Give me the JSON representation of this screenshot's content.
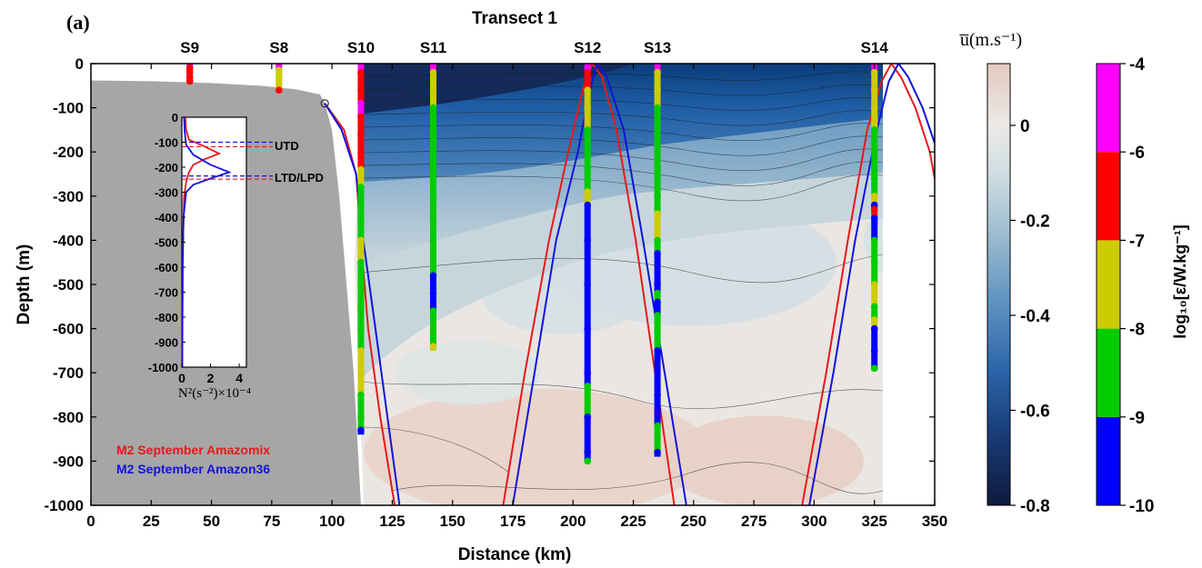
{
  "chart_data": {
    "type": "section-contour",
    "panel_label": "(a)",
    "title": "Transect 1",
    "xlabel": "Distance (km)",
    "ylabel": "Depth (m)",
    "xlim": [
      0,
      350
    ],
    "ylim": [
      -1000,
      0
    ],
    "xticks": [
      "0",
      "25",
      "50",
      "75",
      "100",
      "125",
      "150",
      "175",
      "200",
      "225",
      "250",
      "275",
      "300",
      "325",
      "350"
    ],
    "yticks": [
      "0",
      "-100",
      "-200",
      "-300",
      "-400",
      "-500",
      "-600",
      "-700",
      "-800",
      "-900",
      "-1000"
    ],
    "stations": [
      {
        "name": "S9",
        "x": 41,
        "max_depth": -45,
        "eps": [
          [
            0,
            -4
          ],
          [
            -10,
            -6.5
          ],
          [
            -20,
            -6.5
          ],
          [
            -30,
            -6.5
          ],
          [
            -40,
            -6.5
          ]
        ]
      },
      {
        "name": "S8",
        "x": 78,
        "max_depth": -65,
        "eps": [
          [
            0,
            -4
          ],
          [
            -15,
            -7.5
          ],
          [
            -30,
            -7.5
          ],
          [
            -45,
            -7.5
          ],
          [
            -60,
            -6.5
          ]
        ]
      },
      {
        "name": "S10",
        "x": 112,
        "max_depth": -840,
        "eps": [
          [
            0,
            -4
          ],
          [
            -20,
            -6.5
          ],
          [
            -60,
            -6.5
          ],
          [
            -90,
            -4
          ],
          [
            -120,
            -6.5
          ],
          [
            -160,
            -6.5
          ],
          [
            -200,
            -6.5
          ],
          [
            -240,
            -7.5
          ],
          [
            -280,
            -8.5
          ],
          [
            -320,
            -8.5
          ],
          [
            -360,
            -8.5
          ],
          [
            -400,
            -7.5
          ],
          [
            -450,
            -8.5
          ],
          [
            -500,
            -8.5
          ],
          [
            -550,
            -8.5
          ],
          [
            -600,
            -8.5
          ],
          [
            -650,
            -7.5
          ],
          [
            -700,
            -7.5
          ],
          [
            -750,
            -8.5
          ],
          [
            -800,
            -8.5
          ],
          [
            -830,
            -9.5
          ]
        ]
      },
      {
        "name": "S11",
        "x": 142,
        "max_depth": -650,
        "eps": [
          [
            0,
            -4
          ],
          [
            -20,
            -7.5
          ],
          [
            -60,
            -7.5
          ],
          [
            -100,
            -8.5
          ],
          [
            -150,
            -8.5
          ],
          [
            -200,
            -8.5
          ],
          [
            -250,
            -8.5
          ],
          [
            -300,
            -8.5
          ],
          [
            -350,
            -8.5
          ],
          [
            -400,
            -8.5
          ],
          [
            -450,
            -8.5
          ],
          [
            -480,
            -9.5
          ],
          [
            -520,
            -9.5
          ],
          [
            -560,
            -8.5
          ],
          [
            -600,
            -8.5
          ],
          [
            -640,
            -7.5
          ]
        ]
      },
      {
        "name": "S12",
        "x": 206,
        "max_depth": -900,
        "eps": [
          [
            0,
            -4
          ],
          [
            -20,
            -6.5
          ],
          [
            -60,
            -7.5
          ],
          [
            -100,
            -7.5
          ],
          [
            -150,
            -8.5
          ],
          [
            -200,
            -8.5
          ],
          [
            -250,
            -8.5
          ],
          [
            -290,
            -7.5
          ],
          [
            -320,
            -9.5
          ],
          [
            -400,
            -9.5
          ],
          [
            -500,
            -9.5
          ],
          [
            -600,
            -9.5
          ],
          [
            -700,
            -9.5
          ],
          [
            -730,
            -8.5
          ],
          [
            -800,
            -9.5
          ],
          [
            -880,
            -9.5
          ],
          [
            -900,
            -8.5
          ]
        ]
      },
      {
        "name": "S13",
        "x": 235,
        "max_depth": -890,
        "eps": [
          [
            0,
            -4
          ],
          [
            -20,
            -7.5
          ],
          [
            -60,
            -7.5
          ],
          [
            -100,
            -8.5
          ],
          [
            -200,
            -8.5
          ],
          [
            -300,
            -8.5
          ],
          [
            -340,
            -7.5
          ],
          [
            -400,
            -8.5
          ],
          [
            -430,
            -9.5
          ],
          [
            -500,
            -9.5
          ],
          [
            -520,
            -8.5
          ],
          [
            -540,
            -9.5
          ],
          [
            -570,
            -8.5
          ],
          [
            -650,
            -9.5
          ],
          [
            -750,
            -9.5
          ],
          [
            -820,
            -8.5
          ],
          [
            -880,
            -9.5
          ]
        ]
      },
      {
        "name": "S14",
        "x": 325,
        "max_depth": -695,
        "eps": [
          [
            0,
            -4
          ],
          [
            -20,
            -7.5
          ],
          [
            -60,
            -7.5
          ],
          [
            -100,
            -7.5
          ],
          [
            -150,
            -8.5
          ],
          [
            -200,
            -8.5
          ],
          [
            -260,
            -8.5
          ],
          [
            -300,
            -7.5
          ],
          [
            -320,
            -9.5
          ],
          [
            -330,
            -6.5
          ],
          [
            -350,
            -9.5
          ],
          [
            -400,
            -8.5
          ],
          [
            -450,
            -8.5
          ],
          [
            -500,
            -7.5
          ],
          [
            -550,
            -8.5
          ],
          [
            -580,
            -7.5
          ],
          [
            -600,
            -9.5
          ],
          [
            -650,
            -9.5
          ],
          [
            -690,
            -8.5
          ]
        ]
      }
    ],
    "bathymetry": [
      [
        0,
        -38
      ],
      [
        25,
        -40
      ],
      [
        50,
        -44
      ],
      [
        70,
        -50
      ],
      [
        85,
        -58
      ],
      [
        95,
        -70
      ],
      [
        97,
        -90
      ],
      [
        100,
        -150
      ],
      [
        103,
        -300
      ],
      [
        106,
        -500
      ],
      [
        109,
        -700
      ],
      [
        112,
        -1000
      ]
    ],
    "marker": {
      "x": 97,
      "y": -90
    },
    "rays": [
      {
        "name": "M2 September Amazomix",
        "color": "#e6191b",
        "segments": [
          [
            [
              97,
              -90
            ],
            [
              105,
              -150
            ],
            [
              110,
              -250
            ],
            [
              112,
              -400
            ],
            [
              115,
              -600
            ],
            [
              120,
              -800
            ],
            [
              126,
              -1000
            ]
          ],
          [
            [
              171,
              -1000
            ],
            [
              180,
              -700
            ],
            [
              190,
              -400
            ],
            [
              198,
              -200
            ],
            [
              204,
              -60
            ],
            [
              208,
              0
            ],
            [
              212,
              -30
            ],
            [
              218,
              -150
            ],
            [
              226,
              -400
            ],
            [
              234,
              -700
            ],
            [
              242,
              -1000
            ]
          ],
          [
            [
              295,
              -1000
            ],
            [
              305,
              -700
            ],
            [
              314,
              -400
            ],
            [
              322,
              -150
            ],
            [
              328,
              -40
            ],
            [
              332,
              0
            ],
            [
              336,
              -30
            ],
            [
              342,
              -100
            ],
            [
              348,
              -200
            ],
            [
              350,
              -260
            ]
          ]
        ]
      },
      {
        "name": "M2 September Amazon36",
        "color": "#1212d9",
        "segments": [
          [
            [
              97,
              -90
            ],
            [
              104,
              -150
            ],
            [
              110,
              -250
            ],
            [
              113,
              -400
            ],
            [
              118,
              -600
            ],
            [
              123,
              -800
            ],
            [
              128,
              -1000
            ]
          ],
          [
            [
              175,
              -1000
            ],
            [
              184,
              -700
            ],
            [
              193,
              -400
            ],
            [
              202,
              -200
            ],
            [
              207,
              -60
            ],
            [
              210,
              0
            ],
            [
              214,
              -30
            ],
            [
              221,
              -150
            ],
            [
              229,
              -400
            ],
            [
              238,
              -700
            ],
            [
              247,
              -1000
            ]
          ],
          [
            [
              298,
              -1000
            ],
            [
              308,
              -700
            ],
            [
              317,
              -400
            ],
            [
              326,
              -150
            ],
            [
              331,
              -40
            ],
            [
              335,
              0
            ],
            [
              339,
              -30
            ],
            [
              345,
              -100
            ],
            [
              350,
              -180
            ]
          ]
        ]
      }
    ],
    "inset": {
      "xlabel": "N²(s⁻²)×10⁻⁴",
      "xlim": [
        0,
        4.5
      ],
      "ylim": [
        -1000,
        0
      ],
      "xticks": [
        "0",
        "2",
        "4"
      ],
      "yticks": [
        "0",
        "-100",
        "-200",
        "-300",
        "-400",
        "-500",
        "-600",
        "-700",
        "-800",
        "-900",
        "-1000"
      ],
      "series": [
        {
          "name": "Amazomix",
          "color": "#e6191b",
          "values": [
            [
              0.25,
              0
            ],
            [
              0.3,
              -50
            ],
            [
              0.5,
              -90
            ],
            [
              1.5,
              -115
            ],
            [
              2.6,
              -145
            ],
            [
              1.5,
              -170
            ],
            [
              0.8,
              -190
            ],
            [
              0.5,
              -220
            ],
            [
              0.3,
              -260
            ],
            [
              0.15,
              -320
            ],
            [
              0.08,
              -500
            ],
            [
              0.04,
              -800
            ],
            [
              0.02,
              -1000
            ]
          ]
        },
        {
          "name": "Amazon36",
          "color": "#1212d9",
          "values": [
            [
              0.15,
              0
            ],
            [
              0.2,
              -60
            ],
            [
              0.3,
              -110
            ],
            [
              0.8,
              -150
            ],
            [
              2.0,
              -190
            ],
            [
              3.3,
              -220
            ],
            [
              2.0,
              -245
            ],
            [
              0.8,
              -270
            ],
            [
              0.3,
              -300
            ],
            [
              0.12,
              -400
            ],
            [
              0.06,
              -600
            ],
            [
              0.03,
              -1000
            ]
          ]
        }
      ],
      "levels": [
        {
          "label": "UTD",
          "red": -118,
          "blue": -100
        },
        {
          "label": "LTD/LPD",
          "red": -248,
          "blue": -235
        }
      ]
    },
    "legend": [
      "M2 September Amazomix",
      "M2 September Amazon36"
    ],
    "colorbar_u": {
      "label": "u̅(m.s⁻¹)",
      "range": [
        -0.8,
        0.13
      ],
      "ticks": [
        "0",
        "-0.2",
        "-0.4",
        "-0.6",
        "-0.8"
      ],
      "tick_values": [
        0,
        -0.2,
        -0.4,
        -0.6,
        -0.8
      ]
    },
    "colorbar_eps": {
      "label": "log₁₀[ε/W.kg⁻¹]",
      "ticks": [
        "-4",
        "-6",
        "-7",
        "-8",
        "-9",
        "-10"
      ],
      "bins": [
        {
          "from": -10,
          "to": -9,
          "color": "#0000ff"
        },
        {
          "from": -9,
          "to": -8,
          "color": "#00cc00"
        },
        {
          "from": -8,
          "to": -7,
          "color": "#cccc00"
        },
        {
          "from": -7,
          "to": -6,
          "color": "#ff0000"
        },
        {
          "from": -6,
          "to": -4,
          "color": "#ff00ff"
        }
      ]
    }
  }
}
